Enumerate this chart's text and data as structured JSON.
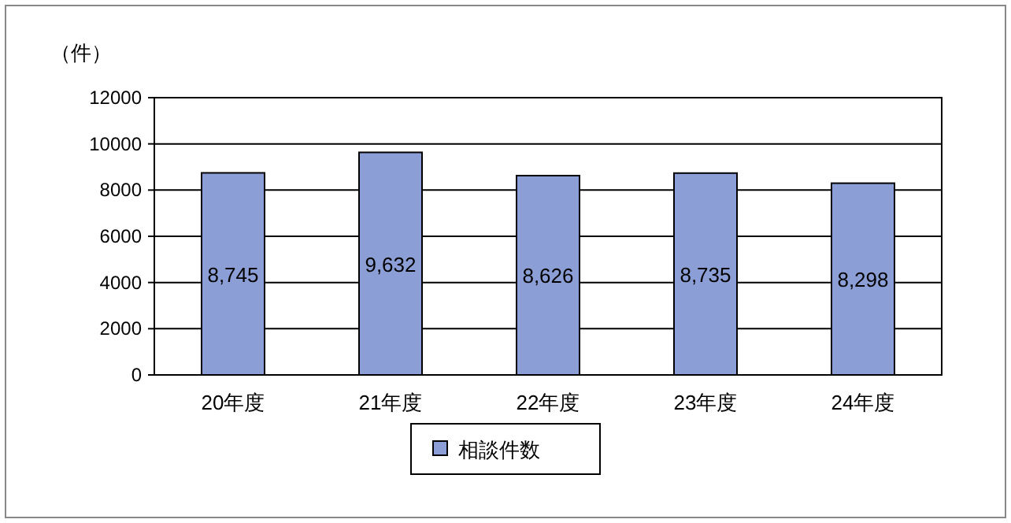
{
  "chart_data": {
    "type": "bar",
    "ylabel": "（件）",
    "categories": [
      "20年度",
      "21年度",
      "22年度",
      "23年度",
      "24年度"
    ],
    "series": [
      {
        "name": "相談件数",
        "color": "#8c9ed6",
        "values": [
          8745,
          9632,
          8626,
          8735,
          8298
        ],
        "value_labels": [
          "8,745",
          "9,632",
          "8,626",
          "8,735",
          "8,298"
        ]
      }
    ],
    "ylim": [
      0,
      12000
    ],
    "yticks": [
      0,
      2000,
      4000,
      6000,
      8000,
      10000,
      12000
    ],
    "grid": "y",
    "legend": "bottom"
  }
}
